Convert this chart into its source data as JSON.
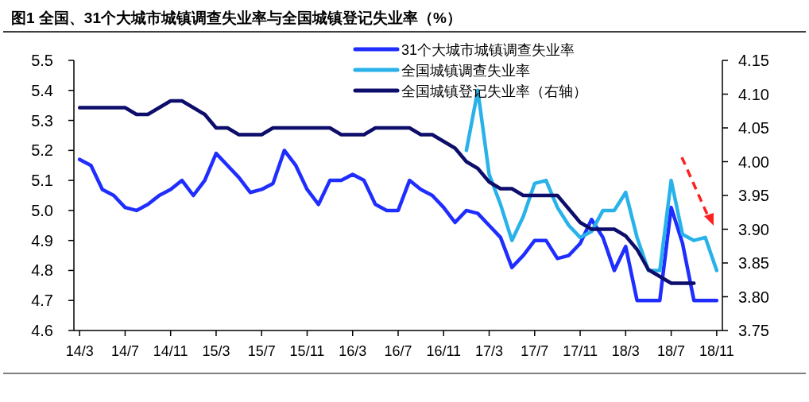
{
  "chart_data": {
    "type": "line",
    "title": "图1  全国、31个大城市城镇调查失业率与全国城镇登记失业率（%）",
    "categories": [
      "14/3",
      null,
      null,
      null,
      "14/7",
      null,
      null,
      null,
      "14/11",
      null,
      null,
      null,
      "15/3",
      null,
      null,
      null,
      "15/7",
      null,
      null,
      null,
      "15/11",
      null,
      null,
      null,
      "16/3",
      null,
      null,
      null,
      "16/7",
      null,
      null,
      null,
      "16/11",
      null,
      null,
      null,
      "17/3",
      null,
      null,
      null,
      "17/7",
      null,
      null,
      null,
      "17/11",
      null,
      null,
      null,
      "18/3",
      null,
      null,
      null,
      "18/7",
      null,
      null,
      null,
      "18/11"
    ],
    "series": [
      {
        "name": "31个大城市城镇调查失业率",
        "color": "#1f2dff",
        "values": [
          5.17,
          5.15,
          5.07,
          5.05,
          5.01,
          5.0,
          5.02,
          5.05,
          5.07,
          5.1,
          5.05,
          5.1,
          5.19,
          5.15,
          5.11,
          5.06,
          5.07,
          5.09,
          5.2,
          5.15,
          5.07,
          5.02,
          5.1,
          5.1,
          5.12,
          5.1,
          5.02,
          5.0,
          5.0,
          5.1,
          5.07,
          5.05,
          5.01,
          4.96,
          5.0,
          4.99,
          4.95,
          4.91,
          4.81,
          4.85,
          4.9,
          4.9,
          4.84,
          4.85,
          4.89,
          4.97,
          4.91,
          4.8,
          4.88,
          4.7,
          4.7,
          4.7,
          5.01,
          4.89,
          4.7,
          4.7,
          4.7
        ]
      },
      {
        "name": "全国城镇调查失业率",
        "color": "#29b2ea",
        "values": [
          null,
          null,
          null,
          null,
          null,
          null,
          null,
          null,
          null,
          null,
          null,
          null,
          null,
          null,
          null,
          null,
          null,
          null,
          null,
          null,
          null,
          null,
          null,
          null,
          null,
          null,
          null,
          null,
          null,
          null,
          null,
          null,
          null,
          null,
          5.2,
          5.4,
          5.12,
          5.02,
          4.9,
          4.98,
          5.09,
          5.1,
          5.01,
          4.95,
          4.91,
          4.93,
          5.0,
          5.0,
          5.06,
          4.91,
          4.8,
          4.8,
          5.1,
          4.92,
          4.9,
          4.91,
          4.8
        ]
      },
      {
        "name": "全国城镇登记失业率（右轴）",
        "color": "#0d0d6b",
        "axis": "y2",
        "values": [
          4.08,
          4.08,
          4.08,
          4.08,
          4.08,
          4.07,
          4.07,
          4.08,
          4.09,
          4.09,
          4.08,
          4.07,
          4.05,
          4.05,
          4.04,
          4.04,
          4.04,
          4.05,
          4.05,
          4.05,
          4.05,
          4.05,
          4.05,
          4.04,
          4.04,
          4.04,
          4.05,
          4.05,
          4.05,
          4.05,
          4.04,
          4.04,
          4.03,
          4.02,
          4.0,
          3.99,
          3.97,
          3.96,
          3.96,
          3.95,
          3.95,
          3.95,
          3.95,
          3.93,
          3.91,
          3.9,
          3.9,
          3.9,
          3.89,
          3.87,
          3.84,
          3.83,
          3.82,
          3.82,
          3.82,
          null,
          null
        ]
      }
    ],
    "ylim": [
      4.6,
      5.5
    ],
    "yticks": [
      4.6,
      4.7,
      4.8,
      4.9,
      {
        "value": 5,
        "label": "5.0"
      },
      5.1,
      5.2,
      5.3,
      5.4,
      5.5
    ],
    "y2lim": [
      3.75,
      4.15
    ],
    "y2ticks": [
      3.75,
      {
        "value": 3.8,
        "label": "3.80"
      },
      3.85,
      {
        "value": 3.9,
        "label": "3.90"
      },
      3.95,
      {
        "value": 4,
        "label": "4.00"
      },
      4.05,
      {
        "value": 4.1,
        "label": "4.10"
      },
      4.15
    ],
    "legend": "top right",
    "grid": false,
    "marker": "none",
    "line_style": "solid"
  }
}
